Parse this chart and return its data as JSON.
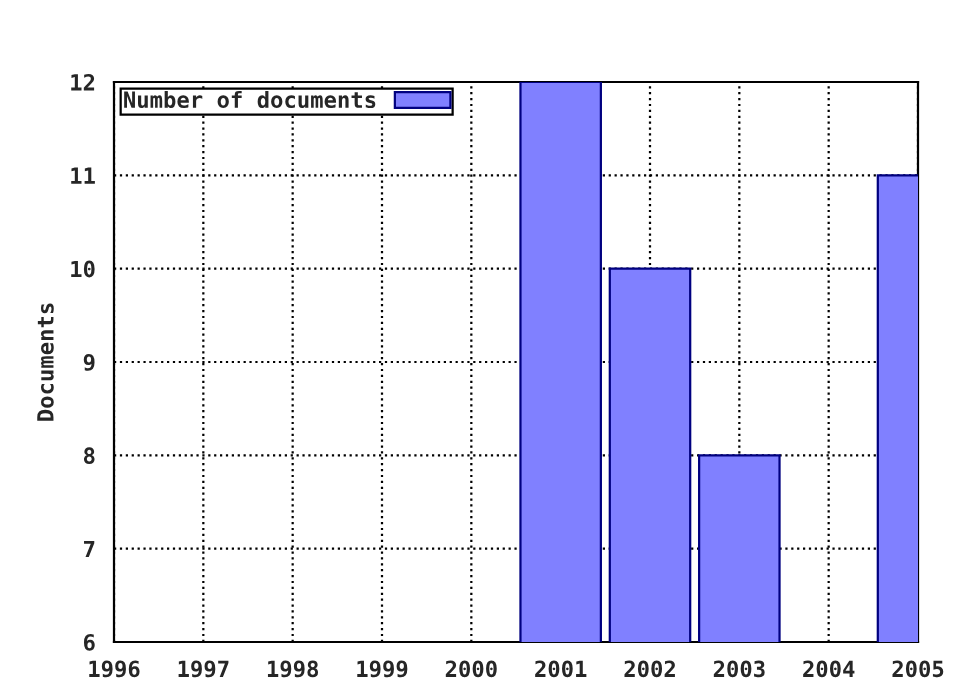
{
  "chart_data": {
    "type": "bar",
    "ylabel": "Documents",
    "x": [
      2001,
      2002,
      2003,
      2005
    ],
    "series": [
      {
        "name": "Number of documents",
        "color": "#8080ff",
        "values": [
          12,
          10,
          8,
          11
        ]
      }
    ],
    "xlim": [
      1996,
      2005
    ],
    "xticks": [
      1996,
      1997,
      1998,
      1999,
      2000,
      2001,
      2002,
      2003,
      2004,
      2005
    ],
    "ylim": [
      6,
      12
    ],
    "yticks": [
      6,
      7,
      8,
      9,
      10,
      11,
      12
    ],
    "grid": true,
    "legend": "top left"
  }
}
